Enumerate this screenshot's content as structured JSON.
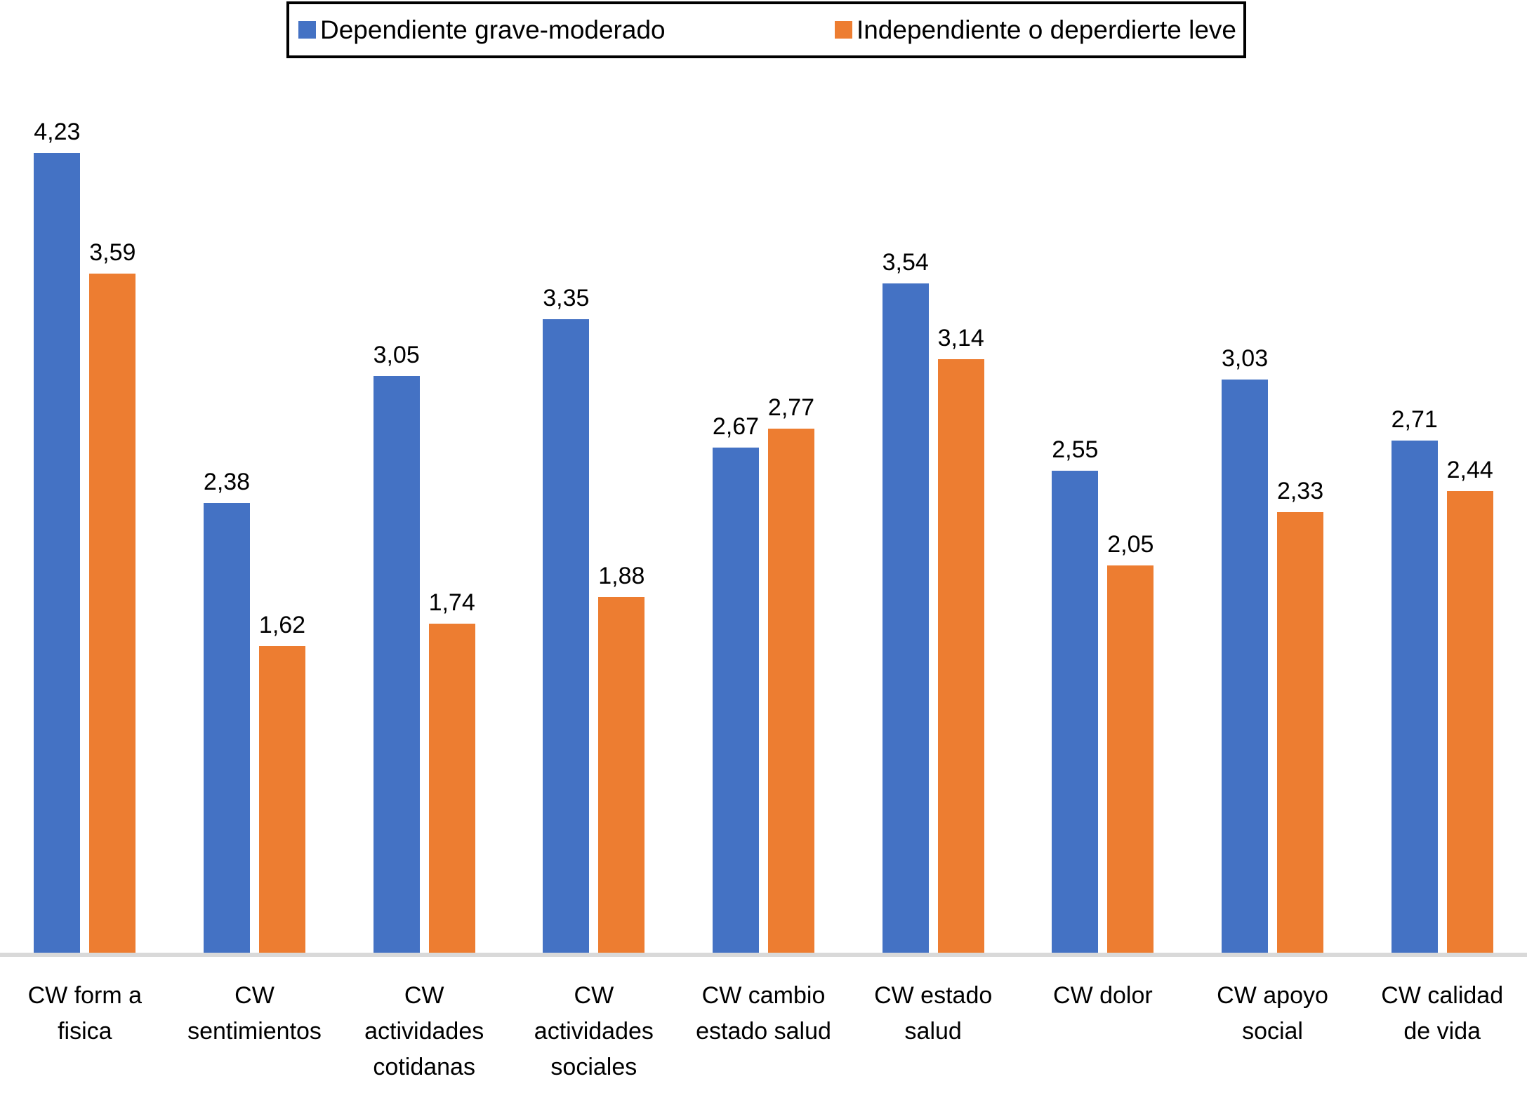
{
  "chart_data": {
    "type": "bar",
    "title": "",
    "xlabel": "",
    "ylabel": "",
    "ylim": [
      0,
      4.5
    ],
    "grid": false,
    "legend_position": "top",
    "value_label_decimal_separator": ",",
    "categories": [
      {
        "label": "CW form a fisica",
        "lines": [
          "CW form a",
          "fisica"
        ]
      },
      {
        "label": "CW sentimientos",
        "lines": [
          "CW",
          "sentimientos"
        ]
      },
      {
        "label": "CW actividades cotidanas",
        "lines": [
          "CW",
          "actividades",
          "cotidanas"
        ]
      },
      {
        "label": "CW actividades sociales",
        "lines": [
          "CW",
          "actividades",
          "sociales"
        ]
      },
      {
        "label": "CW cambio estado salud",
        "lines": [
          "CW cambio",
          "estado salud"
        ]
      },
      {
        "label": "CW estado salud",
        "lines": [
          "CW estado",
          "salud"
        ]
      },
      {
        "label": "CW dolor",
        "lines": [
          "CW dolor"
        ]
      },
      {
        "label": "CW apoyo social",
        "lines": [
          "CW apoyo",
          "social"
        ]
      },
      {
        "label": "CW calidad de vida",
        "lines": [
          "CW calidad",
          "de vida"
        ]
      }
    ],
    "series": [
      {
        "name": "Dependiente grave-moderado",
        "color": "#4472C4",
        "values": [
          4.23,
          2.38,
          3.05,
          3.35,
          2.67,
          3.54,
          2.55,
          3.03,
          2.71
        ],
        "value_labels": [
          "4,23",
          "2,38",
          "3,05",
          "3,35",
          "2,67",
          "3,54",
          "2,55",
          "3,03",
          "2,71"
        ]
      },
      {
        "name": "Independiente o deperdierte leve",
        "color": "#ED7D31",
        "values": [
          3.59,
          1.62,
          1.74,
          1.88,
          2.77,
          3.14,
          2.05,
          2.33,
          2.44
        ],
        "value_labels": [
          "3,59",
          "1,62",
          "1,74",
          "1,88",
          "2,77",
          "3,14",
          "2,05",
          "2,33",
          "2,44"
        ]
      }
    ]
  },
  "colors": {
    "series_blue": "#4472C4",
    "series_orange": "#ED7D31",
    "axis_line": "#d9d9d9",
    "legend_border": "#000000",
    "text": "#000000",
    "background": "#ffffff"
  }
}
